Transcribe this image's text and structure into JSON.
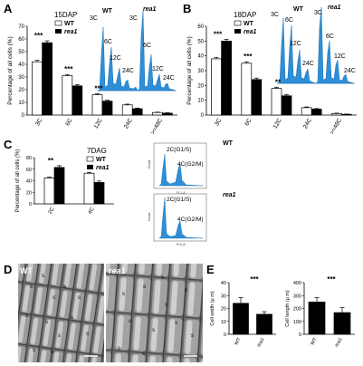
{
  "figure": {
    "panels": {
      "A": {
        "label": "A",
        "condition": "15DAP",
        "inset_labels": {
          "wt": "WT",
          "rea1": "rea1",
          "peaks": [
            "3C",
            "6C",
            "12C",
            "24C",
            "3C",
            "6C",
            "12C",
            "24C"
          ]
        }
      },
      "B": {
        "label": "B",
        "condition": "18DAP",
        "inset_labels": {
          "wt": "WT",
          "rea1": "rea1",
          "peaks": [
            "3C",
            "6C",
            "12C",
            "24C",
            "3C",
            "6C",
            "12C",
            "24C"
          ]
        }
      },
      "C": {
        "label": "C",
        "condition": "7DAG",
        "histo": [
          {
            "name": "WT",
            "peak1": "2C(G1/S)",
            "peak2": "4C(G2/M)",
            "xlabel": "FL2-A"
          },
          {
            "name": "rea1",
            "peak1": "2C(G1/S)",
            "peak2": "4C(G2/M)",
            "xlabel": "FL2-A"
          }
        ],
        "histo_ylabel": "Count"
      },
      "D": {
        "label": "D",
        "micro_labels": {
          "wt": "WT",
          "rea1": "rea1"
        },
        "cell_mark": "s"
      },
      "E": {
        "label": "E"
      }
    },
    "legend": {
      "wt": "WT",
      "rea1": "rea1"
    }
  },
  "chart_data": [
    {
      "type": "bar",
      "panel": "A",
      "title": "15DAP",
      "categories": [
        "3C",
        "6C",
        "12C",
        "24C",
        ">=48C"
      ],
      "ylabel": "Percentage of all cells (%)",
      "ylim": [
        0,
        70
      ],
      "yticks": [
        0,
        10,
        20,
        30,
        40,
        50,
        60,
        70
      ],
      "series": [
        {
          "name": "WT",
          "values": [
            42,
            31,
            16,
            8,
            2
          ],
          "errors": [
            1.2,
            1.0,
            0.8,
            0.6,
            0.3
          ]
        },
        {
          "name": "rea1",
          "values": [
            57,
            23,
            11,
            5,
            1.5
          ],
          "errors": [
            1.5,
            1.0,
            0.7,
            0.5,
            0.3
          ]
        }
      ],
      "annotations": [
        "***",
        "***",
        "***",
        "",
        ""
      ]
    },
    {
      "type": "bar",
      "panel": "B",
      "title": "18DAP",
      "categories": [
        "3C",
        "6C",
        "12C",
        "24C",
        ">=48C"
      ],
      "ylabel": "Percentage of all cells (%)",
      "ylim": [
        0,
        60
      ],
      "yticks": [
        0,
        10,
        20,
        30,
        40,
        50,
        60
      ],
      "series": [
        {
          "name": "WT",
          "values": [
            38,
            35,
            18,
            5,
            1
          ],
          "errors": [
            1.0,
            1.0,
            0.8,
            0.5,
            0.3
          ]
        },
        {
          "name": "rea1",
          "values": [
            50,
            24,
            13,
            4,
            0.5
          ],
          "errors": [
            1.2,
            1.0,
            0.8,
            0.4,
            0.2
          ]
        }
      ],
      "annotations": [
        "***",
        "***",
        "**",
        "",
        ""
      ]
    },
    {
      "type": "bar",
      "panel": "C",
      "title": "7DAG",
      "categories": [
        "2C",
        "4C"
      ],
      "ylabel": "Percentage of all cells (%)",
      "ylim": [
        0,
        80
      ],
      "yticks": [
        0,
        20,
        40,
        60,
        80
      ],
      "series": [
        {
          "name": "WT",
          "values": [
            45,
            53
          ],
          "errors": [
            1.5,
            1.5
          ]
        },
        {
          "name": "rea1",
          "values": [
            63,
            37
          ],
          "errors": [
            3,
            2.5
          ]
        }
      ],
      "annotations": [
        "**",
        "**"
      ]
    },
    {
      "type": "bar",
      "panel": "E1",
      "categories": [
        "WT",
        "rea1"
      ],
      "ylabel": "Cell width (μ m)",
      "ylim": [
        0,
        40
      ],
      "yticks": [
        0,
        10,
        20,
        30,
        40
      ],
      "series": [
        {
          "name": "",
          "values": [
            24,
            15.5
          ],
          "errors": [
            4.5,
            2
          ]
        }
      ],
      "annotations": [
        "***"
      ]
    },
    {
      "type": "bar",
      "panel": "E2",
      "categories": [
        "WT",
        "rea1"
      ],
      "ylabel": "Cell length (μ m)",
      "ylim": [
        0,
        400
      ],
      "yticks": [
        0,
        100,
        200,
        300,
        400
      ],
      "series": [
        {
          "name": "",
          "values": [
            250,
            168
          ],
          "errors": [
            35,
            38
          ]
        }
      ],
      "annotations": [
        "***"
      ]
    }
  ]
}
